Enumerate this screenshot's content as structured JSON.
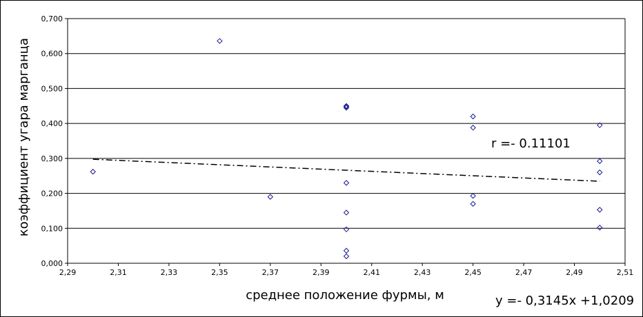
{
  "chart_data": {
    "type": "scatter",
    "xlabel": "среднее  положение фурмы, м",
    "ylabel": "коэффициент угара марганца",
    "xlim": [
      2.29,
      2.51
    ],
    "ylim": [
      0,
      0.7
    ],
    "x_ticks": [
      "2,29",
      "2,31",
      "2,33",
      "2,35",
      "2,37",
      "2,39",
      "2,41",
      "2,43",
      "2,45",
      "2,47",
      "2,49",
      "2,51"
    ],
    "y_ticks": [
      "0,000",
      "0,100",
      "0,200",
      "0,300",
      "0,400",
      "0,500",
      "0,600",
      "0,700"
    ],
    "grid": "horizontal",
    "series": [
      {
        "x": [
          2.3,
          2.35,
          2.37,
          2.4,
          2.4,
          2.4,
          2.4,
          2.4,
          2.4,
          2.4,
          2.4,
          2.45,
          2.45,
          2.45,
          2.45,
          2.5,
          2.5,
          2.5,
          2.5,
          2.5
        ],
        "y": [
          0.262,
          0.636,
          0.19,
          0.45,
          0.445,
          0.23,
          0.145,
          0.097,
          0.036,
          0.02,
          0.448,
          0.42,
          0.388,
          0.193,
          0.17,
          0.395,
          0.292,
          0.26,
          0.153,
          0.102
        ]
      }
    ],
    "trendline": {
      "slope": -0.3145,
      "intercept": 1.0209,
      "x_range": [
        2.3,
        2.5
      ]
    },
    "annotations": {
      "correlation": "r =- 0.11101",
      "equation": "y =- 0,3145x +1,0209"
    },
    "colors": {
      "marker": "#1a1a8c",
      "grid": "#000000",
      "trend": "#000000"
    }
  }
}
